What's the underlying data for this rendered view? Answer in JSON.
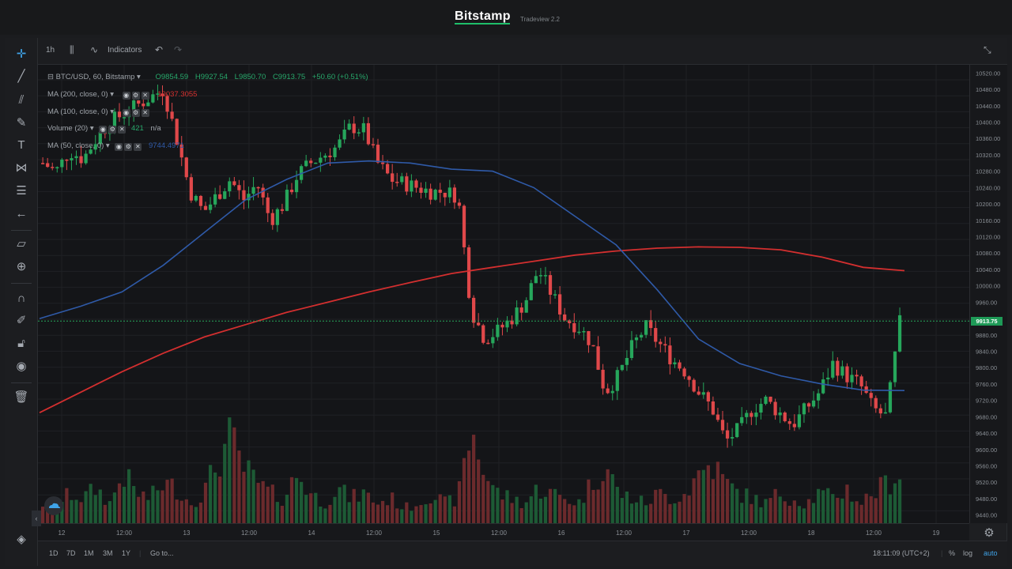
{
  "header": {
    "brand": "Bitstamp",
    "version": "Tradeview 2.2"
  },
  "toolbar": {
    "interval": "1h",
    "indicators_label": "Indicators"
  },
  "left_tools": [
    "crosshair-icon",
    "trend-line-icon",
    "fib-icon",
    "brush-icon",
    "text-icon",
    "pattern-icon",
    "forecast-icon",
    "arrow-left-icon",
    "ruler-icon",
    "zoom-in-icon",
    "magnet-icon",
    "lock-draw-icon",
    "lock-icon",
    "eye-icon",
    "trash-icon"
  ],
  "legend": {
    "symbol": "BTC/USD, 60, Bitstamp",
    "open": "O9854.59",
    "high": "H9927.54",
    "low": "L9850.70",
    "close": "C9913.75",
    "change": "+50.60 (+0.51%)",
    "ma200_label": "MA (200, close, 0)",
    "ma200_value": "10037.3055",
    "ma100_label": "MA (100, close, 0)",
    "volume_label": "Volume (20)",
    "volume_value": "421",
    "volume_na": "n/a",
    "ma50_label": "MA (50, close, 0)",
    "ma50_value": "9744.4971"
  },
  "price_axis": {
    "labels": [
      "10520.00",
      "10480.00",
      "10440.00",
      "10400.00",
      "10360.00",
      "10320.00",
      "10280.00",
      "10240.00",
      "10200.00",
      "10160.00",
      "10120.00",
      "10080.00",
      "10040.00",
      "10000.00",
      "9960.00",
      "9920.00",
      "9880.00",
      "9840.00",
      "9800.00",
      "9760.00",
      "9720.00",
      "9680.00",
      "9640.00",
      "9600.00",
      "9560.00",
      "9520.00",
      "9480.00",
      "9440.00"
    ],
    "current": "9913.75"
  },
  "time_axis": {
    "labels": [
      "12",
      "12:00",
      "13",
      "12:00",
      "14",
      "12:00",
      "15",
      "12:00",
      "16",
      "12:00",
      "17",
      "12:00",
      "18",
      "12:00",
      "19"
    ]
  },
  "bottom": {
    "ranges": [
      "1D",
      "7D",
      "1M",
      "3M",
      "1Y"
    ],
    "goto": "Go to...",
    "clock": "18:11:09 (UTC+2)",
    "pct": "%",
    "log": "log",
    "auto": "auto"
  },
  "colors": {
    "up": "#26a65b",
    "down": "#e0484a",
    "ma200": "#d32f2f",
    "ma50": "#2f5aa8",
    "accent": "#3fa3e8"
  },
  "chart_data": {
    "type": "candlestick",
    "title": "BTC/USD, 60, Bitstamp",
    "ylim": [
      9420,
      10540
    ],
    "current_price": 9913.75,
    "ma200": [
      9690,
      9740,
      9790,
      9835,
      9875,
      9905,
      9935,
      9960,
      9985,
      10008,
      10030,
      10045,
      10060,
      10075,
      10085,
      10092,
      10095,
      10094,
      10088,
      10070,
      10045,
      10037
    ],
    "ma50": [
      9920,
      9950,
      9985,
      10050,
      10130,
      10210,
      10260,
      10300,
      10305,
      10300,
      10285,
      10280,
      10240,
      10170,
      10100,
      9990,
      9870,
      9810,
      9780,
      9760,
      9745,
      9744
    ],
    "close_path": [
      10300,
      10280,
      10330,
      10310,
      10360,
      10400,
      10420,
      10440,
      10460,
      10480,
      10360,
      10230,
      10180,
      10220,
      10260,
      10210,
      10250,
      10160,
      10200,
      10270,
      10300,
      10320,
      10340,
      10390,
      10380,
      10300,
      10260,
      10250,
      10240,
      10230,
      10230,
      10220,
      9940,
      9870,
      9890,
      9920,
      9960,
      10040,
      9980,
      9920,
      9900,
      9860,
      9740,
      9780,
      9850,
      9900,
      9860,
      9820,
      9790,
      9740,
      9700,
      9620,
      9650,
      9700,
      9720,
      9690,
      9660,
      9700,
      9740,
      9810,
      9780,
      9760,
      9700,
      9680,
      9910
    ],
    "volume_levels": [
      0.2,
      0.15,
      0.3,
      0.25,
      0.35,
      0.2,
      0.5,
      0.3,
      0.25,
      0.4,
      0.35,
      0.2,
      0.3,
      0.6,
      0.85,
      0.55,
      0.4,
      0.3,
      0.25,
      0.5,
      0.3,
      0.2,
      0.35,
      0.25,
      0.3,
      0.2,
      0.25,
      0.15,
      0.2,
      0.3,
      0.2,
      0.25,
      0.95,
      0.5,
      0.3,
      0.25,
      0.2,
      0.35,
      0.3,
      0.25,
      0.2,
      0.4,
      0.6,
      0.3,
      0.25,
      0.2,
      0.3,
      0.25,
      0.3,
      0.5,
      0.6,
      0.4,
      0.3,
      0.25,
      0.2,
      0.3,
      0.25,
      0.2,
      0.3,
      0.25,
      0.35,
      0.2,
      0.3,
      0.4,
      0.5
    ]
  }
}
